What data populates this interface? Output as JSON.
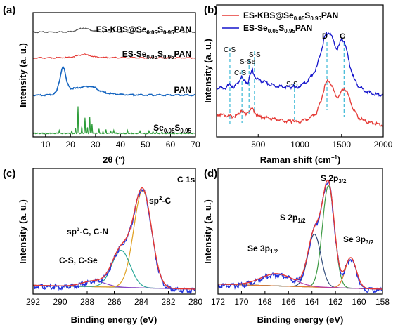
{
  "chart_data": [
    {
      "panel": "(a)",
      "type": "line",
      "xlabel": "2θ (°)",
      "ylabel": "Intensity (a. u.)",
      "xlim": [
        5,
        70
      ],
      "xticks": [
        "10",
        "20",
        "30",
        "40",
        "50",
        "60",
        "70"
      ],
      "series": [
        {
          "name": "ES-KBS@Se0.05S0.95PAN",
          "label_main": "ES-KBS@Se",
          "label_sub1": "0.05",
          "label_mid": "S",
          "label_sub2": "0.95",
          "label_end": "PAN",
          "color": "#555555",
          "x": [
            5,
            10,
            15,
            20,
            23,
            25,
            27,
            30,
            35,
            40,
            50,
            60,
            70
          ],
          "y": [
            0.25,
            0.25,
            0.26,
            0.3,
            0.55,
            0.8,
            0.62,
            0.35,
            0.28,
            0.26,
            0.25,
            0.25,
            0.24
          ]
        },
        {
          "name": "ES-Se0.05S0.95PAN",
          "label_main": "ES-Se",
          "label_sub1": "0.05",
          "label_mid": "S",
          "label_sub2": "0.95",
          "label_end": "PAN",
          "color": "#e53935",
          "x": [
            5,
            10,
            15,
            20,
            23,
            25,
            27,
            30,
            35,
            40,
            50,
            60,
            70
          ],
          "y": [
            0.2,
            0.2,
            0.22,
            0.28,
            0.5,
            0.72,
            0.58,
            0.32,
            0.24,
            0.22,
            0.2,
            0.2,
            0.2
          ]
        },
        {
          "name": "PAN",
          "label_main": "PAN",
          "color": "#1565c0",
          "x": [
            5,
            8,
            11,
            13,
            14.5,
            15.5,
            16.5,
            17,
            17.5,
            18.5,
            20,
            22,
            24,
            26,
            28,
            30,
            32,
            35,
            40,
            45,
            50,
            60,
            70
          ],
          "y": [
            0.15,
            0.15,
            0.17,
            0.25,
            0.6,
            1.6,
            3.0,
            3.3,
            3.0,
            1.6,
            0.9,
            0.9,
            1.0,
            1.1,
            1.1,
            0.95,
            0.6,
            0.35,
            0.22,
            0.18,
            0.17,
            0.16,
            0.15
          ]
        },
        {
          "name": "Se0.05S0.95",
          "label_main": "Se",
          "label_sub1": "0.05",
          "label_mid": "S",
          "label_sub2": "0.95",
          "color": "#2e9d3a",
          "peaks": [
            [
              15.5,
              0.8
            ],
            [
              20.5,
              0.5
            ],
            [
              22,
              1.2
            ],
            [
              23,
              6.5
            ],
            [
              24.5,
              1.6
            ],
            [
              25.8,
              3.8
            ],
            [
              26.8,
              1.5
            ],
            [
              27.7,
              3.8
            ],
            [
              28.6,
              2.3
            ],
            [
              31.4,
              1.1
            ],
            [
              33,
              0.5
            ],
            [
              34.2,
              1.0
            ],
            [
              36.1,
              0.6
            ],
            [
              37.3,
              0.8
            ],
            [
              42.8,
              0.7
            ],
            [
              47.8,
              0.6
            ],
            [
              51.4,
              0.5
            ],
            [
              53,
              0.4
            ],
            [
              54.5,
              0.3
            ],
            [
              56.6,
              0.4
            ]
          ]
        }
      ]
    },
    {
      "panel": "(b)",
      "type": "line",
      "xlabel": "Raman shift (cm",
      "xlabel_sup": "−1",
      "xlabel_end": ")",
      "ylabel": "Intensity (a. u.)",
      "xlim": [
        0,
        2000
      ],
      "xticks": [
        "500",
        "1000",
        "1500",
        "2000"
      ],
      "series": [
        {
          "name": "ES-KBS@Se0.05S0.95PAN",
          "label_main": "ES-KBS@Se",
          "label_sub1": "0.05",
          "label_mid": "S",
          "label_sub2": "0.95",
          "label_end": "PAN",
          "color": "#e53935",
          "x": [
            0,
            100,
            150,
            200,
            250,
            280,
            300,
            320,
            350,
            370,
            400,
            430,
            460,
            480,
            520,
            600,
            700,
            800,
            900,
            920,
            940,
            1000,
            1100,
            1200,
            1250,
            1300,
            1340,
            1380,
            1420,
            1450,
            1480,
            1500,
            1530,
            1560,
            1600,
            1650,
            1700,
            1800,
            1900,
            2000
          ],
          "y": [
            1.05,
            1.0,
            0.95,
            0.95,
            1.0,
            1.12,
            1.25,
            1.12,
            1.0,
            1.15,
            1.22,
            1.28,
            1.15,
            1.0,
            0.92,
            0.9,
            0.82,
            0.75,
            0.72,
            0.84,
            0.7,
            0.72,
            0.82,
            1.1,
            1.6,
            2.3,
            2.6,
            2.35,
            1.95,
            1.8,
            1.9,
            2.1,
            2.2,
            2.1,
            1.7,
            1.2,
            0.9,
            0.7,
            0.62,
            0.55
          ]
        },
        {
          "name": "ES-Se0.05S0.95PAN",
          "label_main": "ES-Se",
          "label_sub1": "0.05",
          "label_mid": "S",
          "label_sub2": "0.95",
          "label_end": "PAN",
          "color": "#1515cc",
          "x": [
            0,
            100,
            150,
            170,
            200,
            250,
            280,
            300,
            320,
            350,
            380,
            400,
            430,
            460,
            480,
            520,
            600,
            700,
            800,
            900,
            920,
            940,
            1000,
            1100,
            1200,
            1250,
            1300,
            1340,
            1380,
            1420,
            1450,
            1480,
            1500,
            1530,
            1560,
            1600,
            1650,
            1700,
            1800,
            1900,
            2000
          ],
          "y": [
            2.2,
            2.2,
            2.35,
            2.35,
            2.25,
            2.4,
            2.6,
            2.75,
            2.55,
            2.5,
            2.45,
            2.75,
            3.0,
            2.75,
            2.6,
            2.55,
            2.45,
            2.3,
            2.25,
            2.25,
            2.35,
            2.2,
            2.3,
            2.55,
            3.1,
            3.8,
            4.5,
            4.7,
            4.55,
            4.1,
            3.95,
            4.2,
            4.4,
            4.3,
            3.9,
            3.2,
            2.6,
            2.3,
            2.05,
            1.95,
            1.9
          ]
        }
      ],
      "annotations": [
        {
          "text": "C-S",
          "x": 160
        },
        {
          "text": "C-S",
          "x": 305
        },
        {
          "text": "S-Se",
          "x": 390
        },
        {
          "text": "S-S",
          "x": 455
        },
        {
          "text": "S-S",
          "x": 935
        },
        {
          "text": "D",
          "x": 1325
        },
        {
          "text": "G",
          "x": 1530
        }
      ]
    },
    {
      "panel": "(c)",
      "type": "line",
      "title": "C 1s",
      "xlabel": "Binding energy (eV)",
      "ylabel": "Intensity (a. u.)",
      "xlim": [
        292,
        280
      ],
      "xticks": [
        "292",
        "290",
        "288",
        "286",
        "284",
        "282",
        "280"
      ],
      "components": [
        {
          "name": "sp2-C",
          "center": 283.9,
          "height": 1.0,
          "fwhm": 1.55,
          "color": "#e0a020"
        },
        {
          "name": "sp3-C, C-N",
          "center": 285.5,
          "height": 0.38,
          "fwhm": 1.6,
          "color": "#2aa898"
        },
        {
          "name": "C-S, C-Se",
          "center": 287.5,
          "height": 0.06,
          "fwhm": 2.0,
          "color": "#8844cc"
        }
      ],
      "background": {
        "start": 292,
        "end": 280,
        "y_start": 0.04,
        "y_end": 0.0,
        "color": "#999999"
      },
      "labels": [
        {
          "text": "sp",
          "sup": "2",
          "rest": "-C"
        },
        {
          "text": "sp",
          "sup": "3",
          "rest": "-C, C-N"
        },
        {
          "text": "C-S, C-Se"
        }
      ]
    },
    {
      "panel": "(d)",
      "type": "line",
      "xlabel": "Binding energy (eV)",
      "ylabel": "Intensity (a. u.)",
      "xlim": [
        172,
        158
      ],
      "xticks": [
        "172",
        "170",
        "168",
        "166",
        "164",
        "162",
        "160",
        "158"
      ],
      "components": [
        {
          "name": "S 2p3/2",
          "center": 162.6,
          "height": 1.0,
          "fwhm": 1.2,
          "color": "#3d9a44"
        },
        {
          "name": "S 2p1/2",
          "center": 163.8,
          "height": 0.52,
          "fwhm": 1.3,
          "color": "#2f4a7a"
        },
        {
          "name": "Se 3p3/2",
          "center": 160.7,
          "height": 0.3,
          "fwhm": 1.1,
          "color": "#e57a30"
        },
        {
          "name": "Se 3p1/2",
          "center": 167.0,
          "height": 0.12,
          "fwhm": 3.2,
          "color": "#b43aa8"
        }
      ],
      "background": {
        "start": 172,
        "end": 158,
        "y_start": 0.05,
        "y_end": 0.0,
        "color": "#999999"
      },
      "labels": [
        {
          "text": "S 2p",
          "sub": "3/2"
        },
        {
          "text": "S 2p",
          "sub": "1/2"
        },
        {
          "text": "Se 3p",
          "sub": "1/2"
        },
        {
          "text": "Se 3p",
          "sub": "3/2"
        }
      ]
    }
  ]
}
